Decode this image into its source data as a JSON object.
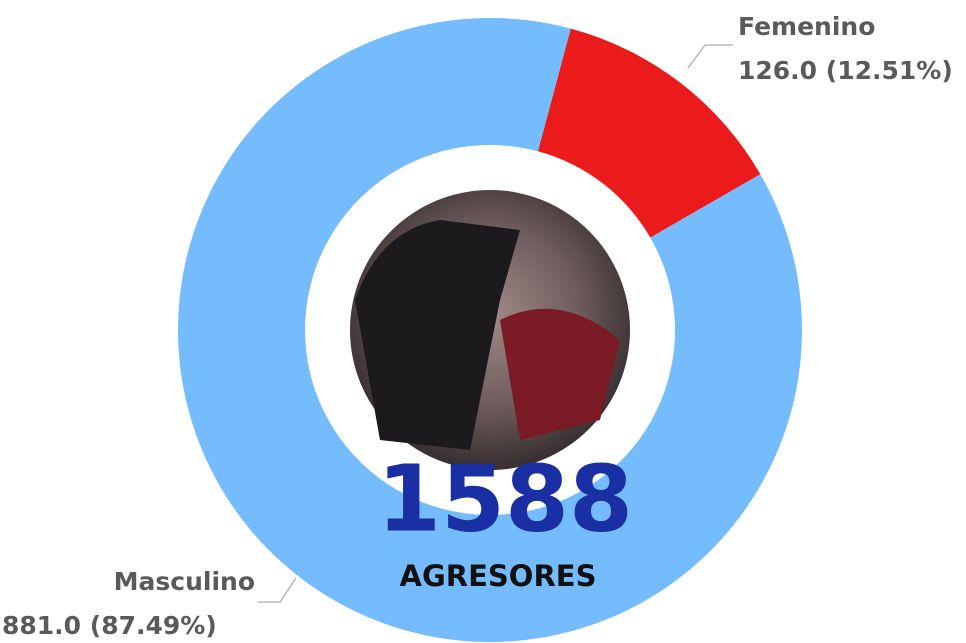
{
  "chart_data": {
    "type": "donut",
    "categories": [
      "Femenino",
      "Masculino"
    ],
    "values": [
      126,
      881
    ],
    "value_labels": [
      "126.0 (12.51%)",
      "881.0 (87.49%)"
    ],
    "colors": [
      "#ec1b1b",
      "#74bcfe"
    ],
    "center_value": 1588,
    "center_label": "AGRESORES"
  }
}
